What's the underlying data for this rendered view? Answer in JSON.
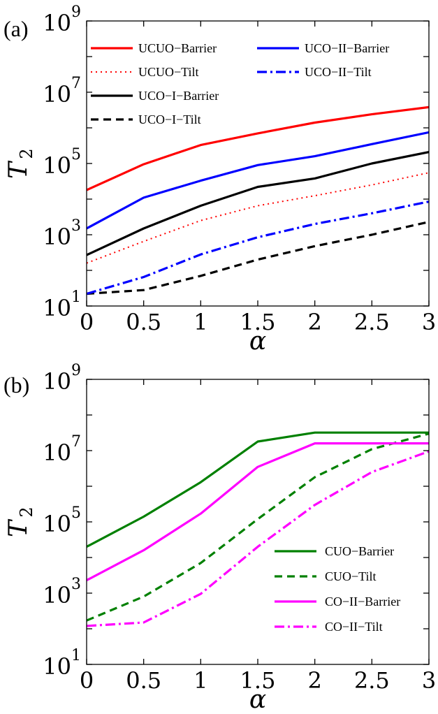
{
  "chart_data": [
    {
      "type": "line",
      "panel_label": "(a)",
      "xlabel": "α",
      "ylabel": {
        "main": "T",
        "sub": "2"
      },
      "xlim": [
        0,
        3
      ],
      "ylim": [
        10,
        1000000000
      ],
      "yscale": "log",
      "x_ticks": [
        "0",
        "0.5",
        "1",
        "1.5",
        "2",
        "2.5",
        "3"
      ],
      "y_ticks": [
        {
          "base": "10",
          "exp": "1"
        },
        {
          "base": "10",
          "exp": "3"
        },
        {
          "base": "10",
          "exp": "5"
        },
        {
          "base": "10",
          "exp": "7"
        },
        {
          "base": "10",
          "exp": "9"
        }
      ],
      "legend_position": "top, two columns",
      "x": [
        0,
        0.5,
        1,
        1.5,
        2,
        2.5,
        3
      ],
      "series": [
        {
          "name": "UCUO−Barrier",
          "color": "#ff0000",
          "style": "solid",
          "values": [
            18000,
            95000,
            330000,
            700000,
            1400000,
            2400000,
            3800000
          ]
        },
        {
          "name": "UCUO−Tilt",
          "color": "#ff0000",
          "style": "dotted",
          "values": [
            160,
            650,
            2500,
            6500,
            12500,
            25000,
            55000
          ]
        },
        {
          "name": "UCO−I−Barrier",
          "color": "#000000",
          "style": "solid",
          "values": [
            270,
            1500,
            6500,
            22000,
            38000,
            100000,
            210000
          ]
        },
        {
          "name": "UCO−I−Tilt",
          "color": "#000000",
          "style": "dashed",
          "values": [
            22,
            28,
            70,
            200,
            480,
            1000,
            2300
          ]
        },
        {
          "name": "UCO−II−Barrier",
          "color": "#0000ff",
          "style": "solid",
          "values": [
            1500,
            11000,
            33000,
            90000,
            160000,
            350000,
            750000
          ]
        },
        {
          "name": "UCO−II−Tilt",
          "color": "#0000ff",
          "style": "dashdot",
          "values": [
            22,
            65,
            280,
            850,
            2000,
            4000,
            8500
          ]
        }
      ]
    },
    {
      "type": "line",
      "panel_label": "(b)",
      "xlabel": "α",
      "ylabel": {
        "main": "T",
        "sub": "2"
      },
      "xlim": [
        0,
        3
      ],
      "ylim": [
        10,
        1000000000
      ],
      "yscale": "log",
      "x_ticks": [
        "0",
        "0.5",
        "1",
        "1.5",
        "2",
        "2.5",
        "3"
      ],
      "y_ticks": [
        {
          "base": "10",
          "exp": "1"
        },
        {
          "base": "10",
          "exp": "3"
        },
        {
          "base": "10",
          "exp": "5"
        },
        {
          "base": "10",
          "exp": "7"
        },
        {
          "base": "10",
          "exp": "9"
        }
      ],
      "legend_position": "lower-right",
      "x": [
        0,
        0.5,
        1,
        1.5,
        2,
        2.5,
        3
      ],
      "series": [
        {
          "name": "CUO−Barrier",
          "color": "#008000",
          "style": "solid",
          "values": [
            20000,
            140000,
            1300000,
            18000000,
            32000000,
            32000000,
            32000000
          ]
        },
        {
          "name": "CUO−Tilt",
          "color": "#008000",
          "style": "dashed",
          "values": [
            170,
            800,
            7000,
            120000,
            1800000,
            11000000,
            30000000
          ]
        },
        {
          "name": "CO−II−Barrier",
          "color": "#ff00ff",
          "style": "solid",
          "values": [
            2300,
            16000,
            170000,
            3500000,
            16000000,
            16000000,
            16000000
          ]
        },
        {
          "name": "CO−II−Tilt",
          "color": "#ff00ff",
          "style": "dashdot",
          "values": [
            120,
            150,
            950,
            20000,
            300000,
            2500000,
            9500000
          ]
        }
      ]
    }
  ]
}
